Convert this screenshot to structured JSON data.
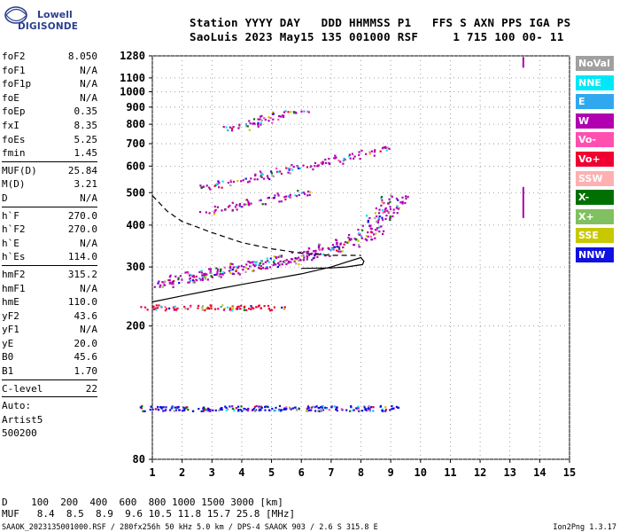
{
  "logo": {
    "line1": "Lowell",
    "line2": "DIGISONDE"
  },
  "header": {
    "row1": "Station YYYY DAY   DDD HHMMSS P1   FFS S AXN PPS IGA PS",
    "row2": "SaoLuis 2023 May15 135 001000 RSF     1 715 100 00- 11"
  },
  "params": [
    {
      "label": "foF2",
      "value": "8.050"
    },
    {
      "label": "foF1",
      "value": "N/A"
    },
    {
      "label": "foF1p",
      "value": "N/A"
    },
    {
      "label": "foE",
      "value": "N/A"
    },
    {
      "label": "foEp",
      "value": "0.35"
    },
    {
      "label": "fxI",
      "value": "8.35"
    },
    {
      "label": "foEs",
      "value": "5.25"
    },
    {
      "label": "fmin",
      "value": "1.45"
    },
    {
      "label": "MUF(D)",
      "value": "25.84",
      "sep": true
    },
    {
      "label": "M(D)",
      "value": "3.21"
    },
    {
      "label": "D",
      "value": "N/A"
    },
    {
      "label": "h`F",
      "value": "270.0",
      "sep": true
    },
    {
      "label": "h`F2",
      "value": "270.0"
    },
    {
      "label": "h`E",
      "value": "N/A"
    },
    {
      "label": "h`Es",
      "value": "114.0"
    },
    {
      "label": "hmF2",
      "value": "315.2",
      "sep": true
    },
    {
      "label": "hmF1",
      "value": "N/A"
    },
    {
      "label": "hmE",
      "value": "110.0"
    },
    {
      "label": "yF2",
      "value": "43.6"
    },
    {
      "label": "yF1",
      "value": "N/A"
    },
    {
      "label": "yE",
      "value": "20.0"
    },
    {
      "label": "B0",
      "value": "45.6"
    },
    {
      "label": "B1",
      "value": "1.70"
    },
    {
      "label": "C-level",
      "value": "22",
      "sep": true
    },
    {
      "label": "Auto:",
      "value": "",
      "sep": true
    },
    {
      "label": "Artist5",
      "value": ""
    },
    {
      "label": "500200",
      "value": ""
    }
  ],
  "legend": [
    {
      "label": "NoVal",
      "color": "#a0a0a0"
    },
    {
      "label": "NNE",
      "color": "#00e8f8"
    },
    {
      "label": "E",
      "color": "#30a8f0"
    },
    {
      "label": "W",
      "color": "#b000b0"
    },
    {
      "label": "Vo-",
      "color": "#ff50b0"
    },
    {
      "label": "Vo+",
      "color": "#f00030"
    },
    {
      "label": "SSW",
      "color": "#ffb0b0"
    },
    {
      "label": "X-",
      "color": "#007000"
    },
    {
      "label": "X+",
      "color": "#80c060"
    },
    {
      "label": "SSE",
      "color": "#c8c800"
    },
    {
      "label": "NNW",
      "color": "#1010e0"
    }
  ],
  "footer": {
    "row1": "D    100  200  400  600  800 1000 1500 3000 [km]",
    "row2": "MUF   8.4  8.5  8.9  9.6 10.5 11.8 15.7 25.8 [MHz]",
    "stamp_left": "SAAOK_2023135001000.RSF / 280fx256h 50 kHz 5.0 km / DPS-4 SAAOK 903 / 2.6 S 315.8 E",
    "stamp_right": "Ion2Png 1.3.17"
  },
  "chart_data": {
    "type": "scatter",
    "title": "",
    "xlabel": "",
    "ylabel": "",
    "xlim": [
      1,
      15
    ],
    "ylim": [
      80,
      1280
    ],
    "x_ticks": [
      "1",
      "2",
      "3",
      "4",
      "5",
      "6",
      "7",
      "8",
      "9",
      "10",
      "11",
      "12",
      "13",
      "14",
      "15"
    ],
    "y_ticks": [
      "80",
      "200",
      "300",
      "400",
      "500",
      "600",
      "700",
      "800",
      "900",
      "1000",
      "1100",
      "1280"
    ],
    "y_tick_values": [
      80,
      200,
      300,
      400,
      500,
      600,
      700,
      800,
      900,
      1000,
      1100,
      1280
    ],
    "y_scale": "log",
    "grid": true,
    "legend_position": "right",
    "series": [
      {
        "name": "O-trace F2",
        "color": "#b000b0",
        "x": [
          1.5,
          2,
          2.5,
          3,
          3.5,
          4,
          4.5,
          5,
          5.5,
          6,
          6.5,
          7,
          7.5,
          8,
          8.3,
          8.6,
          8.9,
          9.1
        ],
        "y": [
          270,
          278,
          284,
          290,
          295,
          300,
          305,
          311,
          317,
          325,
          333,
          343,
          355,
          370,
          390,
          420,
          450,
          480
        ]
      },
      {
        "name": "Es trace",
        "color": "#1010e0",
        "x": [
          1,
          1.5,
          2,
          2.5,
          3,
          3.5,
          4,
          4.5,
          5,
          5.5,
          6,
          6.5,
          7,
          7.5,
          8,
          8.5,
          9
        ],
        "y": [
          114,
          114,
          114,
          114,
          114,
          114,
          114,
          114,
          114,
          114,
          114,
          114,
          114,
          114,
          114,
          114,
          114
        ]
      },
      {
        "name": "Es secondary",
        "color": "#f00030",
        "x": [
          1,
          1.5,
          2,
          2.5,
          3,
          3.5,
          4,
          4.5,
          5
        ],
        "y": [
          228,
          228,
          228,
          228,
          228,
          228,
          228,
          228,
          228
        ]
      },
      {
        "name": "2-hop F",
        "color": "#b000b0",
        "x": [
          3,
          3.5,
          4,
          4.5,
          5,
          5.5,
          6,
          6.5,
          7,
          7.5,
          8,
          8.5
        ],
        "y": [
          520,
          535,
          548,
          560,
          572,
          585,
          598,
          612,
          625,
          640,
          660,
          680
        ]
      },
      {
        "name": "3-hop F",
        "color": "#b000b0",
        "x": [
          3.8,
          4.2,
          4.6,
          5,
          5.4,
          5.8
        ],
        "y": [
          780,
          800,
          820,
          840,
          860,
          880
        ]
      },
      {
        "name": "mid trace",
        "color": "#b000b0",
        "x": [
          3,
          3.5,
          4,
          4.5,
          5,
          5.5,
          6
        ],
        "y": [
          440,
          452,
          462,
          472,
          482,
          492,
          502
        ]
      }
    ],
    "profile_curve_solid": {
      "x": [
        1,
        2,
        3,
        4,
        5,
        6,
        7,
        7.5,
        8,
        8.1,
        8.05,
        7.5,
        7,
        6
      ],
      "y": [
        236,
        246,
        256,
        266,
        276,
        286,
        300,
        310,
        320,
        312,
        305,
        300,
        298,
        297
      ]
    },
    "profile_curve_dashed": {
      "x": [
        1,
        1.5,
        2,
        3,
        4,
        5,
        6,
        7,
        8
      ],
      "y": [
        490,
        440,
        410,
        380,
        355,
        340,
        330,
        325,
        325
      ]
    }
  }
}
